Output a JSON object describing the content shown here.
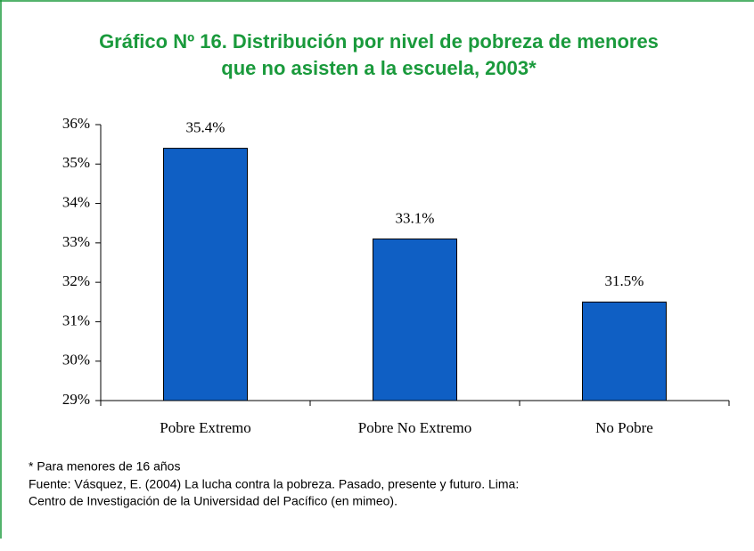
{
  "chart_data": {
    "type": "bar",
    "title_lines": [
      "Gráfico Nº 16. Distribución por nivel de pobreza de menores",
      "que no asisten a la escuela, 2003*"
    ],
    "categories": [
      "Pobre Extremo",
      "Pobre No Extremo",
      "No Pobre"
    ],
    "values": [
      35.4,
      33.1,
      31.5
    ],
    "value_labels": [
      "35.4%",
      "33.1%",
      "31.5%"
    ],
    "color": "#0f5fc4",
    "ylim": [
      29,
      36
    ],
    "yticks": [
      {
        "value": 29,
        "label": "29%"
      },
      {
        "value": 30,
        "label": "30%"
      },
      {
        "value": 31,
        "label": "31%"
      },
      {
        "value": 32,
        "label": "32%"
      },
      {
        "value": 33,
        "label": "33%"
      },
      {
        "value": 34,
        "label": "34%"
      },
      {
        "value": 35,
        "label": "35%"
      },
      {
        "value": 36,
        "label": "36%"
      }
    ],
    "grid": false,
    "notes": [
      "* Para menores de 16 años",
      "Fuente: Vásquez, E. (2004) La lucha contra la pobreza. Pasado, presente y futuro. Lima:",
      "Centro de Investigación de la Universidad del Pacífico (en mimeo)."
    ]
  }
}
